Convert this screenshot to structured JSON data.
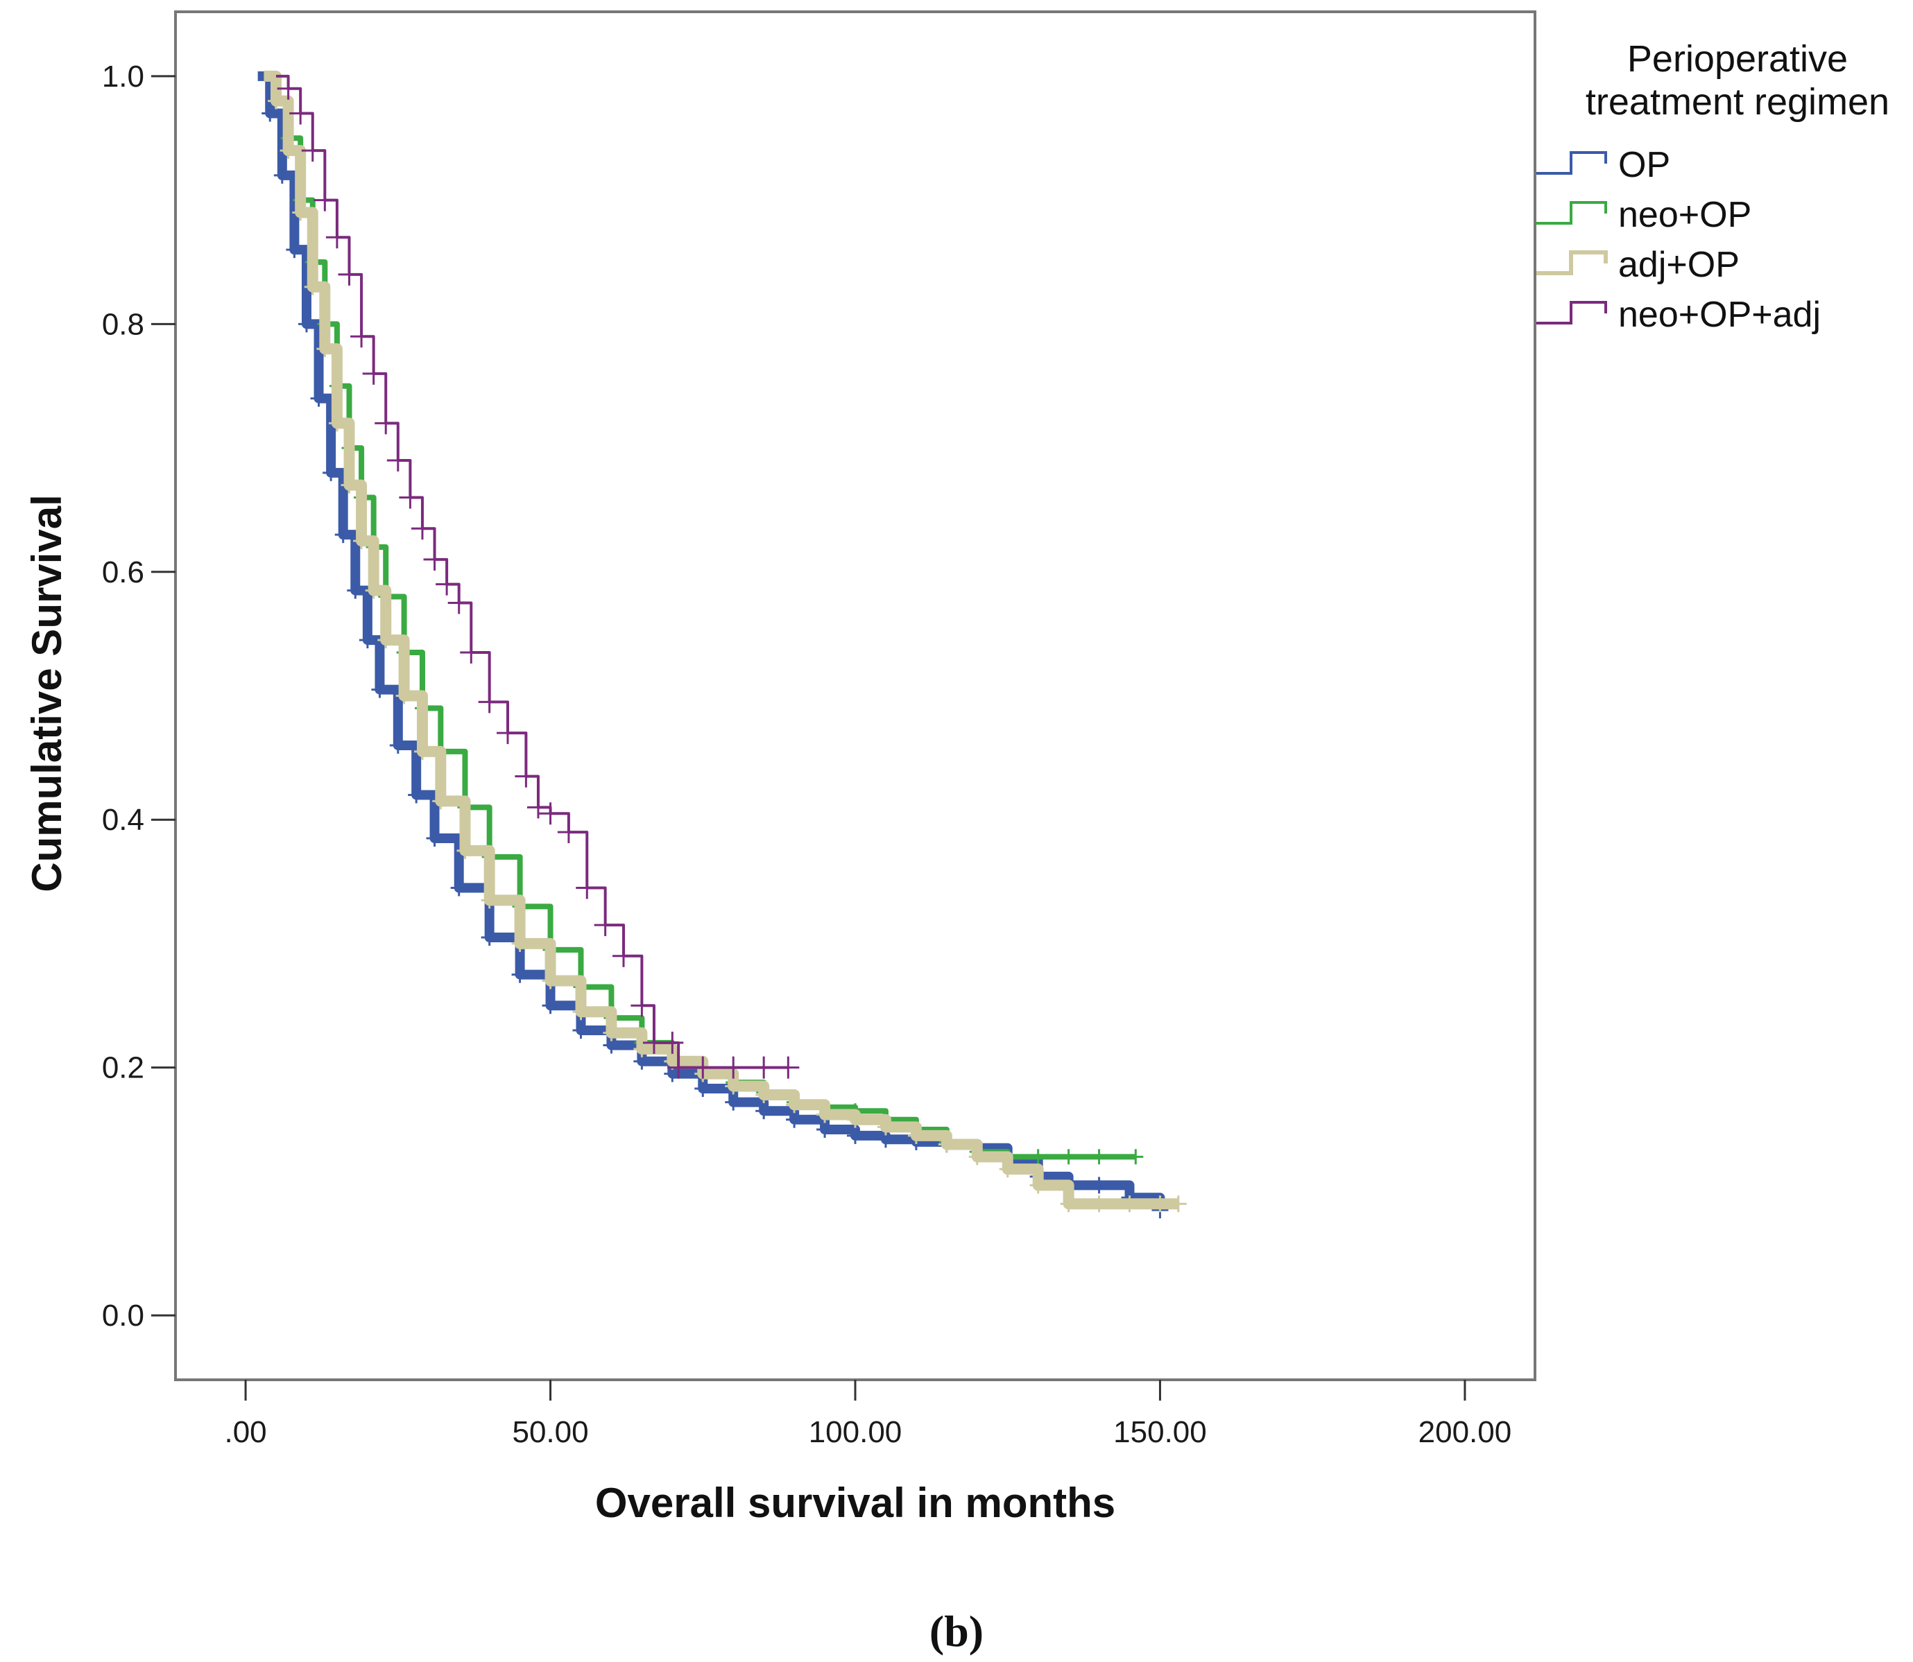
{
  "chart_data": {
    "type": "line",
    "subtype": "kaplan-meier",
    "title": "",
    "caption": "(b)",
    "xlabel": "Overall survival in months",
    "ylabel": "Cumulative Survival",
    "xlim": [
      -11.5,
      211.5
    ],
    "ylim": [
      -0.052,
      1.052
    ],
    "x_ticks": [
      0,
      50,
      100,
      150,
      200
    ],
    "x_tick_labels": [
      ".00",
      "50.00",
      "100.00",
      "150.00",
      "200.00"
    ],
    "y_ticks": [
      0.0,
      0.2,
      0.4,
      0.6,
      0.8,
      1.0
    ],
    "y_tick_labels": [
      "0.0",
      "0.2",
      "0.4",
      "0.6",
      "0.8",
      "1.0"
    ],
    "grid": false,
    "legend": {
      "title_line1": "Perioperative",
      "title_line2": "treatment regimen",
      "placement": "right",
      "entries": [
        "OP",
        "neo+OP",
        "adj+OP",
        "neo+OP+adj"
      ]
    },
    "series": [
      {
        "name": "OP",
        "color": "#3b5ba8",
        "x": [
          2,
          4,
          6,
          8,
          10,
          12,
          14,
          16,
          18,
          20,
          22,
          25,
          28,
          31,
          35,
          40,
          45,
          50,
          55,
          60,
          65,
          70,
          75,
          80,
          85,
          90,
          95,
          100,
          105,
          110,
          115,
          120,
          125,
          130,
          135,
          140,
          145,
          150
        ],
        "y": [
          1.0,
          0.97,
          0.92,
          0.86,
          0.8,
          0.74,
          0.68,
          0.63,
          0.585,
          0.545,
          0.505,
          0.46,
          0.42,
          0.385,
          0.345,
          0.305,
          0.275,
          0.25,
          0.23,
          0.218,
          0.205,
          0.195,
          0.183,
          0.172,
          0.165,
          0.158,
          0.15,
          0.145,
          0.142,
          0.14,
          0.138,
          0.135,
          0.125,
          0.112,
          0.105,
          0.105,
          0.095,
          0.085
        ]
      },
      {
        "name": "neo+OP",
        "color": "#3aaa42",
        "x": [
          3,
          5,
          7,
          9,
          11,
          13,
          15,
          17,
          19,
          21,
          23,
          26,
          29,
          32,
          36,
          40,
          45,
          50,
          55,
          60,
          65,
          70,
          75,
          80,
          85,
          90,
          95,
          100,
          105,
          110,
          115,
          120,
          125,
          130,
          135,
          140,
          146
        ],
        "y": [
          1.0,
          0.98,
          0.95,
          0.9,
          0.85,
          0.8,
          0.75,
          0.7,
          0.66,
          0.62,
          0.58,
          0.535,
          0.49,
          0.455,
          0.41,
          0.37,
          0.33,
          0.295,
          0.265,
          0.24,
          0.22,
          0.205,
          0.195,
          0.188,
          0.18,
          0.172,
          0.168,
          0.165,
          0.158,
          0.15,
          0.14,
          0.132,
          0.128,
          0.128,
          0.128,
          0.128,
          0.128
        ]
      },
      {
        "name": "adj+OP",
        "color": "#cfc9a0",
        "x": [
          3,
          5,
          7,
          9,
          11,
          13,
          15,
          17,
          19,
          21,
          23,
          26,
          29,
          32,
          36,
          40,
          45,
          50,
          55,
          60,
          65,
          70,
          75,
          80,
          85,
          90,
          95,
          100,
          105,
          110,
          115,
          120,
          125,
          130,
          135,
          140,
          145,
          150,
          153
        ],
        "y": [
          1.0,
          0.98,
          0.94,
          0.89,
          0.83,
          0.78,
          0.72,
          0.67,
          0.625,
          0.585,
          0.545,
          0.5,
          0.455,
          0.415,
          0.375,
          0.335,
          0.3,
          0.27,
          0.245,
          0.228,
          0.215,
          0.205,
          0.195,
          0.185,
          0.178,
          0.17,
          0.162,
          0.158,
          0.152,
          0.145,
          0.138,
          0.128,
          0.118,
          0.105,
          0.09,
          0.09,
          0.09,
          0.09,
          0.09
        ]
      },
      {
        "name": "neo+OP+adj",
        "color": "#7b2a7e",
        "x": [
          5,
          7,
          9,
          11,
          13,
          15,
          17,
          19,
          21,
          23,
          25,
          27,
          29,
          31,
          33,
          35,
          37,
          40,
          43,
          46,
          48,
          50,
          53,
          56,
          59,
          62,
          65,
          67,
          70,
          71,
          75,
          80,
          85,
          89
        ],
        "y": [
          1.0,
          0.99,
          0.97,
          0.94,
          0.9,
          0.87,
          0.84,
          0.79,
          0.76,
          0.72,
          0.69,
          0.66,
          0.635,
          0.61,
          0.59,
          0.575,
          0.535,
          0.495,
          0.47,
          0.435,
          0.41,
          0.405,
          0.39,
          0.345,
          0.315,
          0.29,
          0.25,
          0.22,
          0.22,
          0.2,
          0.2,
          0.2,
          0.2,
          0.2
        ]
      }
    ]
  }
}
